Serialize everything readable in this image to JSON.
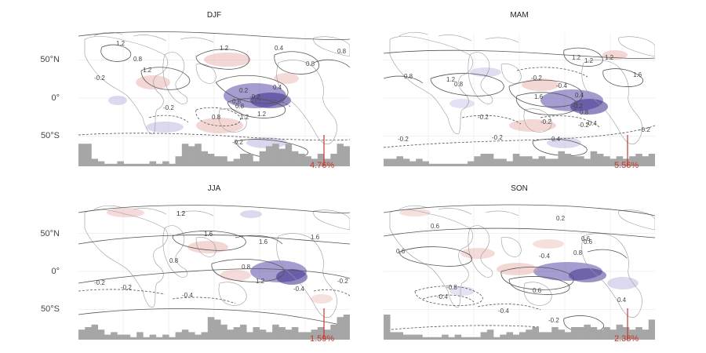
{
  "axis": {
    "lat_ticks": [
      {
        "label": "50°N",
        "lat": 50
      },
      {
        "label": "0°",
        "lat": 0
      },
      {
        "label": "50°S",
        "lat": -50
      }
    ]
  },
  "panels": [
    {
      "title": "DJF",
      "percent": "4.76%",
      "contour_labels": [
        "1.2",
        "1.2",
        "0.8",
        "1.2",
        "0.4",
        "0.8",
        "0.8",
        "0.8",
        "0.2",
        "-0.2",
        "1.2",
        "-0.2",
        "-0.2",
        "0.8",
        "0.4",
        "1.2",
        "0.8",
        "-0.2"
      ],
      "histogram": [
        0.9,
        0.9,
        0.3,
        0.2,
        0.1,
        0.1,
        0.2,
        0.1,
        0.1,
        0.1,
        0.1,
        0.2,
        0.1,
        0.2,
        0.1,
        0.4,
        0.9,
        0.8,
        0.9,
        0.6,
        0.5,
        0.4,
        0.4,
        0.2,
        0.3,
        0.5,
        0.5,
        0.2,
        0.6,
        0.8,
        0.9,
        0.7,
        0.9,
        0.6,
        0.5,
        0.4,
        0.3,
        0.5,
        0.3,
        0.5,
        0.9,
        0.8
      ]
    },
    {
      "title": "MAM",
      "percent": "5.56%",
      "contour_labels": [
        "1.2",
        "1.2",
        "0.8",
        "0.8",
        "1.2",
        "1.2",
        "1.6",
        "-0.2",
        "-0.4",
        "0.4",
        "1.6",
        "-0.2",
        "0.8",
        "-0.2",
        "-0.2",
        "-0.4",
        "-0.2",
        "-0.2",
        "-0.2",
        "0.4",
        "-0.2"
      ],
      "histogram": [
        0.3,
        0.3,
        0.4,
        0.3,
        0.2,
        0.3,
        0.2,
        0.1,
        0.1,
        0.1,
        0.1,
        0.1,
        0.1,
        0.2,
        0.4,
        0.5,
        0.5,
        0.3,
        0.3,
        0.2,
        0.5,
        0.4,
        0.4,
        0.3,
        0.4,
        0.3,
        0.3,
        0.6,
        0.5,
        0.4,
        0.4,
        0.3,
        0.6,
        0.5,
        0.4,
        0.3,
        0.4,
        0.3,
        0.4,
        0.5,
        0.4,
        0.5
      ]
    },
    {
      "title": "JJA",
      "percent": "1.59%",
      "contour_labels": [
        "1.2",
        "1.2",
        "1.6",
        "0.8",
        "1.6",
        "1.6",
        "0.8",
        "1.2",
        "-0.2",
        "-0.2",
        "-0.4",
        "-0.4",
        "-0.2"
      ],
      "histogram": [
        0.4,
        0.5,
        0.6,
        0.4,
        0.2,
        0.3,
        0.2,
        0.2,
        0.1,
        0.3,
        0.1,
        0.2,
        0.1,
        0.2,
        0.1,
        0.3,
        0.4,
        0.3,
        0.2,
        0.3,
        0.9,
        0.8,
        0.6,
        0.4,
        0.5,
        0.6,
        0.3,
        0.5,
        0.4,
        0.3,
        0.6,
        0.5,
        0.4,
        0.5,
        0.3,
        0.3,
        0.4,
        0.5,
        0.4,
        0.6,
        0.9,
        1.0
      ]
    },
    {
      "title": "SON",
      "percent": "2.38%",
      "contour_labels": [
        "0.6",
        "0.2",
        "0.6",
        "0.6",
        "-0.4",
        "0.6",
        "0.8",
        "-0.8",
        "-0.4",
        "0.6",
        "-0.4",
        "-0.2",
        "0.4"
      ],
      "histogram": [
        1.0,
        0.3,
        0.3,
        0.2,
        0.2,
        0.2,
        0.1,
        0.1,
        0.1,
        0.2,
        0.1,
        0.2,
        0.1,
        0.1,
        0.1,
        0.3,
        0.4,
        0.1,
        0.2,
        0.3,
        0.2,
        0.3,
        0.4,
        0.5,
        0.3,
        0.3,
        0.5,
        0.4,
        0.3,
        0.5,
        0.5,
        0.6,
        0.5,
        0.4,
        0.5,
        0.4,
        0.6,
        0.5,
        0.4,
        0.5,
        0.4,
        0.8
      ]
    }
  ]
}
